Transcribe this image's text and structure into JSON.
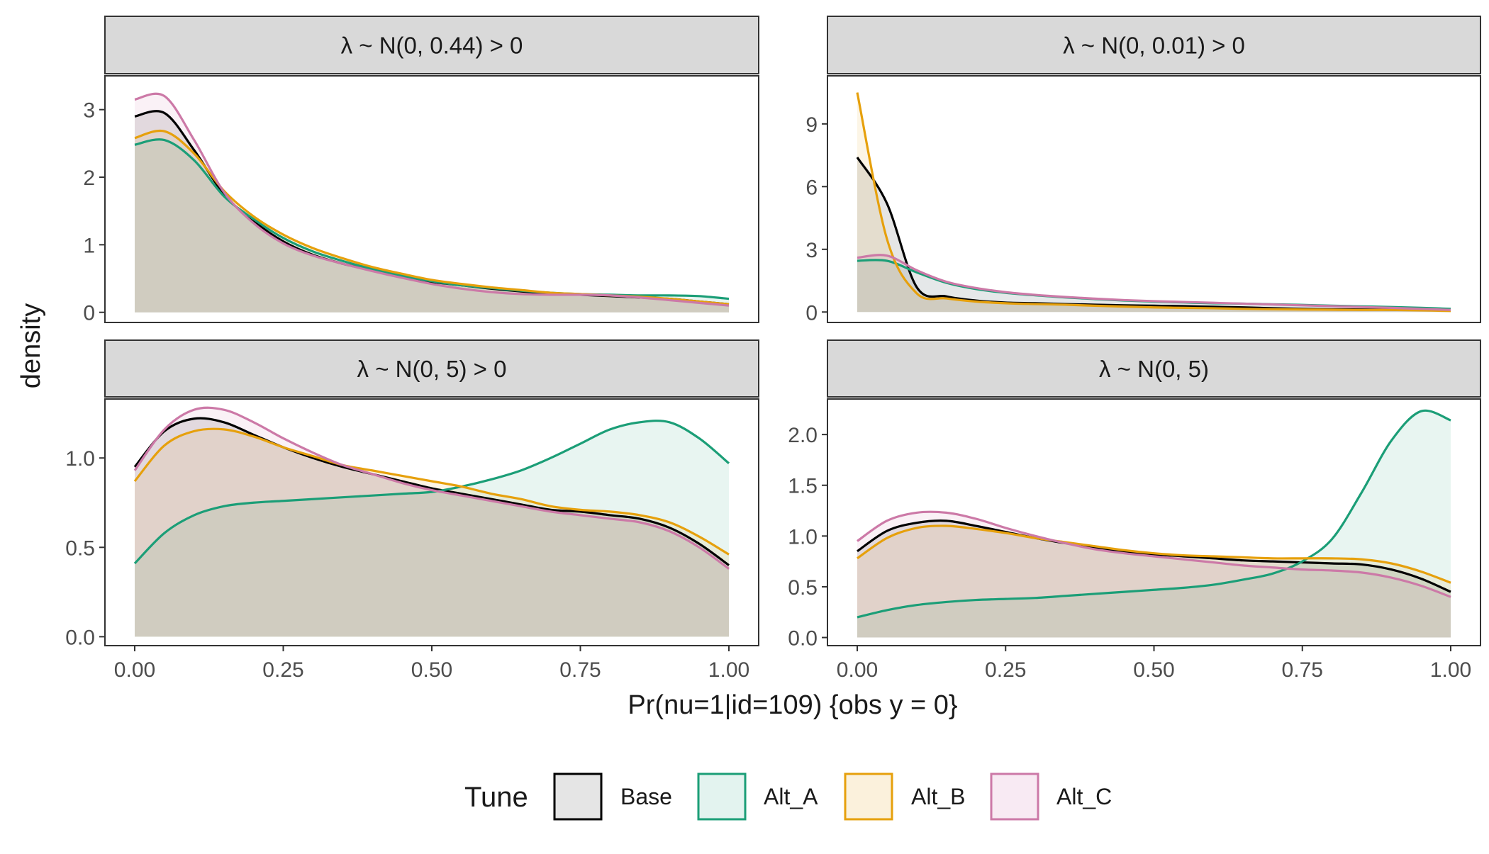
{
  "chart_data": {
    "type": "area",
    "ylabel": "density",
    "xlabel": "Pr(nu=1|id=109) {obs y = 0}",
    "x_ticks": [
      "0.00",
      "0.25",
      "0.50",
      "0.75",
      "1.00"
    ],
    "xlim": [
      0,
      1
    ],
    "legend": {
      "title": "Tune",
      "position": "bottom",
      "items": [
        {
          "name": "Base",
          "color": "#000000",
          "fill": "#e5e5e5"
        },
        {
          "name": "Alt_A",
          "color": "#1b9e77",
          "fill": "#e3f3ef"
        },
        {
          "name": "Alt_B",
          "color": "#e6a00c",
          "fill": "#fbf1dc"
        },
        {
          "name": "Alt_C",
          "color": "#cc79a7",
          "fill": "#f8eaf3"
        }
      ]
    },
    "x": [
      0,
      0.05,
      0.1,
      0.15,
      0.2,
      0.25,
      0.3,
      0.35,
      0.4,
      0.45,
      0.5,
      0.55,
      0.6,
      0.65,
      0.7,
      0.75,
      0.8,
      0.85,
      0.9,
      0.95,
      1.0
    ],
    "panels": [
      {
        "title": "λ ~ N(0, 0.44) > 0",
        "ylim": [
          -0.15,
          3.5
        ],
        "yticks": [
          0,
          1,
          2,
          3
        ],
        "ytick_labels": [
          "0",
          "1",
          "2",
          "3"
        ],
        "series": [
          {
            "name": "Base",
            "values": [
              2.9,
              2.95,
              2.4,
              1.75,
              1.35,
              1.05,
              0.85,
              0.72,
              0.62,
              0.52,
              0.45,
              0.4,
              0.35,
              0.31,
              0.28,
              0.26,
              0.24,
              0.22,
              0.2,
              0.16,
              0.12
            ]
          },
          {
            "name": "Alt_A",
            "values": [
              2.48,
              2.55,
              2.25,
              1.72,
              1.38,
              1.1,
              0.9,
              0.76,
              0.64,
              0.54,
              0.46,
              0.4,
              0.36,
              0.32,
              0.29,
              0.27,
              0.26,
              0.25,
              0.25,
              0.24,
              0.2
            ]
          },
          {
            "name": "Alt_B",
            "values": [
              2.58,
              2.68,
              2.35,
              1.8,
              1.42,
              1.15,
              0.95,
              0.8,
              0.67,
              0.57,
              0.48,
              0.42,
              0.37,
              0.33,
              0.29,
              0.27,
              0.25,
              0.23,
              0.2,
              0.16,
              0.12
            ]
          },
          {
            "name": "Alt_C",
            "values": [
              3.15,
              3.2,
              2.55,
              1.78,
              1.32,
              1.02,
              0.84,
              0.72,
              0.61,
              0.51,
              0.42,
              0.35,
              0.3,
              0.27,
              0.26,
              0.26,
              0.25,
              0.22,
              0.18,
              0.14,
              0.1
            ]
          }
        ]
      },
      {
        "title": "λ ~ N(0, 0.01) > 0",
        "ylim": [
          -0.5,
          11.3
        ],
        "yticks": [
          0,
          3,
          6,
          9
        ],
        "ytick_labels": [
          "0",
          "3",
          "6",
          "9"
        ],
        "series": [
          {
            "name": "Base",
            "values": [
              7.4,
              5.2,
              1.2,
              0.75,
              0.55,
              0.45,
              0.42,
              0.38,
              0.35,
              0.32,
              0.3,
              0.28,
              0.25,
              0.22,
              0.18,
              0.15,
              0.13,
              0.12,
              0.11,
              0.1,
              0.1
            ]
          },
          {
            "name": "Alt_A",
            "values": [
              2.45,
              2.45,
              1.9,
              1.4,
              1.1,
              0.92,
              0.8,
              0.7,
              0.62,
              0.55,
              0.5,
              0.46,
              0.42,
              0.4,
              0.37,
              0.34,
              0.3,
              0.27,
              0.24,
              0.2,
              0.15
            ]
          },
          {
            "name": "Alt_B",
            "values": [
              10.5,
              3.5,
              0.9,
              0.65,
              0.5,
              0.42,
              0.38,
              0.35,
              0.3,
              0.26,
              0.22,
              0.2,
              0.18,
              0.15,
              0.13,
              0.12,
              0.11,
              0.1,
              0.1,
              0.08,
              0.05
            ]
          },
          {
            "name": "Alt_C",
            "values": [
              2.6,
              2.7,
              2.0,
              1.45,
              1.15,
              0.95,
              0.82,
              0.72,
              0.64,
              0.57,
              0.52,
              0.48,
              0.44,
              0.4,
              0.36,
              0.32,
              0.28,
              0.24,
              0.2,
              0.15,
              0.1
            ]
          }
        ]
      },
      {
        "title": "λ ~ N(0, 5) > 0",
        "ylim": [
          -0.05,
          1.33
        ],
        "yticks": [
          0,
          0.5,
          1
        ],
        "ytick_labels": [
          "0.0",
          "0.5",
          "1.0"
        ],
        "series": [
          {
            "name": "Base",
            "values": [
              0.95,
              1.15,
              1.22,
              1.2,
              1.13,
              1.06,
              1.0,
              0.95,
              0.91,
              0.87,
              0.83,
              0.8,
              0.77,
              0.74,
              0.71,
              0.7,
              0.68,
              0.66,
              0.61,
              0.52,
              0.4
            ]
          },
          {
            "name": "Alt_A",
            "values": [
              0.41,
              0.58,
              0.68,
              0.73,
              0.75,
              0.76,
              0.77,
              0.78,
              0.79,
              0.8,
              0.81,
              0.84,
              0.88,
              0.93,
              1.0,
              1.08,
              1.16,
              1.2,
              1.2,
              1.11,
              0.97
            ]
          },
          {
            "name": "Alt_B",
            "values": [
              0.87,
              1.07,
              1.15,
              1.16,
              1.12,
              1.06,
              1.01,
              0.96,
              0.93,
              0.9,
              0.87,
              0.84,
              0.8,
              0.77,
              0.73,
              0.71,
              0.7,
              0.68,
              0.64,
              0.56,
              0.46
            ]
          },
          {
            "name": "Alt_C",
            "values": [
              0.93,
              1.16,
              1.27,
              1.27,
              1.2,
              1.11,
              1.03,
              0.96,
              0.91,
              0.86,
              0.82,
              0.79,
              0.76,
              0.73,
              0.7,
              0.68,
              0.66,
              0.64,
              0.59,
              0.5,
              0.38
            ]
          }
        ]
      },
      {
        "title": "λ ~ N(0, 5)",
        "ylim": [
          -0.08,
          2.35
        ],
        "yticks": [
          0,
          0.5,
          1,
          1.5,
          2
        ],
        "ytick_labels": [
          "0.0",
          "0.5",
          "1.0",
          "1.5",
          "2.0"
        ],
        "series": [
          {
            "name": "Base",
            "values": [
              0.85,
              1.05,
              1.13,
              1.15,
              1.1,
              1.04,
              0.98,
              0.93,
              0.88,
              0.85,
              0.82,
              0.8,
              0.78,
              0.76,
              0.75,
              0.74,
              0.73,
              0.72,
              0.67,
              0.58,
              0.45
            ]
          },
          {
            "name": "Alt_A",
            "values": [
              0.2,
              0.27,
              0.32,
              0.35,
              0.37,
              0.38,
              0.39,
              0.41,
              0.43,
              0.45,
              0.47,
              0.49,
              0.52,
              0.57,
              0.63,
              0.75,
              0.97,
              1.43,
              1.94,
              2.23,
              2.14
            ]
          },
          {
            "name": "Alt_B",
            "values": [
              0.78,
              0.98,
              1.08,
              1.1,
              1.07,
              1.03,
              0.98,
              0.94,
              0.9,
              0.86,
              0.83,
              0.81,
              0.8,
              0.79,
              0.78,
              0.78,
              0.78,
              0.77,
              0.73,
              0.65,
              0.54
            ]
          },
          {
            "name": "Alt_C",
            "values": [
              0.95,
              1.15,
              1.23,
              1.23,
              1.17,
              1.08,
              1.0,
              0.93,
              0.87,
              0.83,
              0.8,
              0.77,
              0.74,
              0.71,
              0.69,
              0.67,
              0.66,
              0.64,
              0.59,
              0.51,
              0.4
            ]
          }
        ]
      }
    ]
  }
}
